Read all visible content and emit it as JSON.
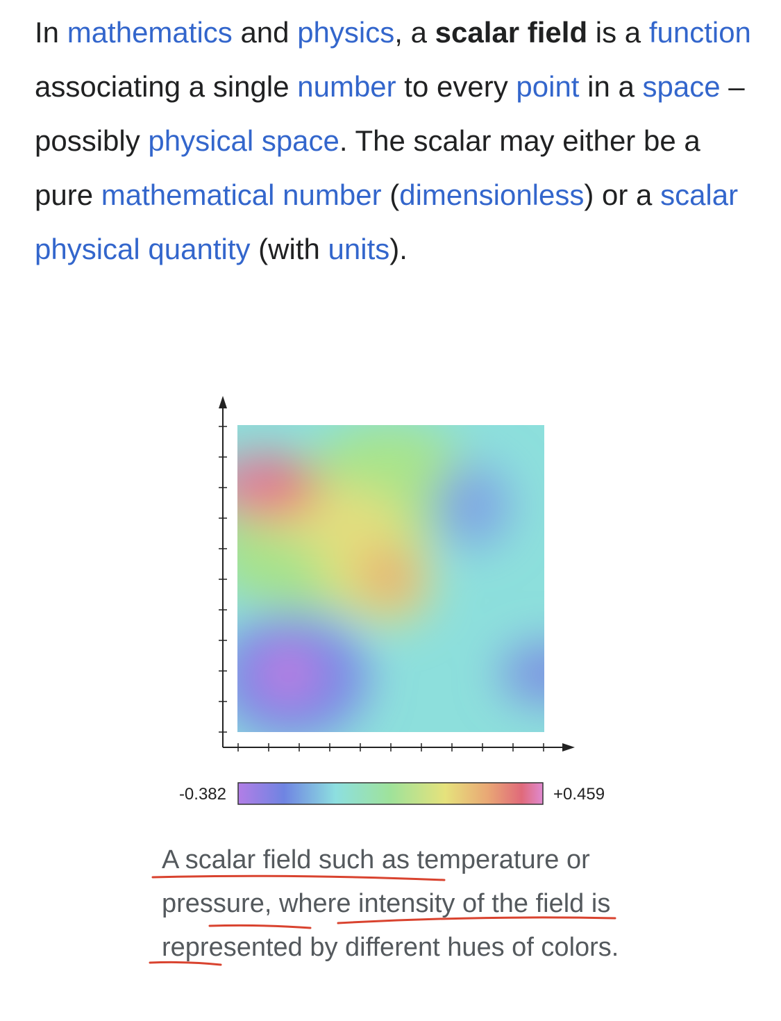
{
  "article": {
    "paragraph": [
      {
        "text": "In ",
        "kind": "plain"
      },
      {
        "text": "mathematics",
        "kind": "link"
      },
      {
        "text": " and ",
        "kind": "plain"
      },
      {
        "text": "physics",
        "kind": "link"
      },
      {
        "text": ", a ",
        "kind": "plain"
      },
      {
        "text": "scalar field",
        "kind": "bold"
      },
      {
        "text": " is a ",
        "kind": "plain"
      },
      {
        "text": "function",
        "kind": "link"
      },
      {
        "text": " associating a single ",
        "kind": "plain"
      },
      {
        "text": "number",
        "kind": "link"
      },
      {
        "text": " to every ",
        "kind": "plain"
      },
      {
        "text": "point",
        "kind": "link"
      },
      {
        "text": " in a ",
        "kind": "plain"
      },
      {
        "text": "space",
        "kind": "link"
      },
      {
        "text": " – possibly ",
        "kind": "plain"
      },
      {
        "text": "physical space",
        "kind": "link"
      },
      {
        "text": ". The scalar may either be a pure ",
        "kind": "plain"
      },
      {
        "text": "mathematical number",
        "kind": "link"
      },
      {
        "text": " (",
        "kind": "plain"
      },
      {
        "text": "dimensionless",
        "kind": "link"
      },
      {
        "text": ") or a ",
        "kind": "plain"
      },
      {
        "text": "scalar physical quantity",
        "kind": "link"
      },
      {
        "text": " (with ",
        "kind": "plain"
      },
      {
        "text": "units",
        "kind": "link"
      },
      {
        "text": ").",
        "kind": "plain"
      }
    ]
  },
  "figure": {
    "scale_min": "-0.382",
    "scale_max": "+0.459",
    "caption": "A scalar field such as temperature or pressure, where intensity of the field is represented by different hues of colors."
  }
}
